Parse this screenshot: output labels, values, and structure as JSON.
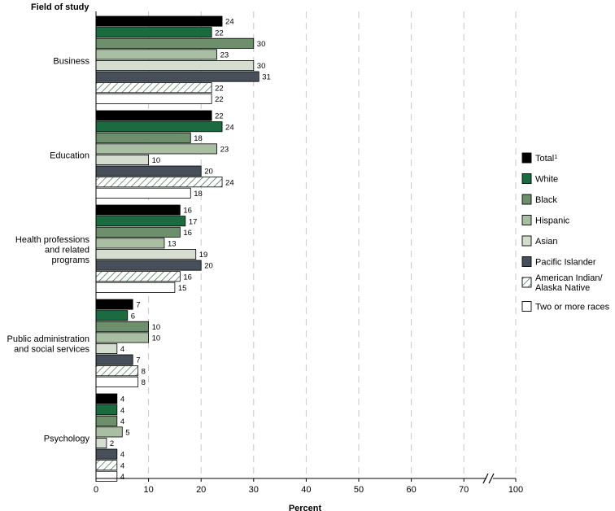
{
  "chart_data": {
    "type": "bar",
    "orientation": "horizontal",
    "title": "",
    "ylabel": "Field of study",
    "xlabel": "Percent",
    "xlim": [
      0,
      100
    ],
    "xticks": [
      "0",
      "10",
      "20",
      "30",
      "40",
      "50",
      "60",
      "70",
      "100"
    ],
    "axis_break": "between 70 and 100",
    "grid": "vertical dashed",
    "legend_position": "right",
    "categories": [
      [
        "Business"
      ],
      [
        "Education"
      ],
      [
        "Health professions",
        "and related",
        "programs"
      ],
      [
        "Public administration",
        "and social services"
      ],
      [
        "Psychology"
      ]
    ],
    "series": [
      {
        "name": "Total",
        "superscript": "1",
        "color": "#000000",
        "pattern": "solid",
        "values": [
          24,
          22,
          16,
          7,
          4
        ]
      },
      {
        "name": "White",
        "color": "#1a6b3f",
        "pattern": "solid",
        "values": [
          22,
          24,
          17,
          6,
          4
        ]
      },
      {
        "name": "Black",
        "color": "#6d8f6c",
        "pattern": "solid",
        "values": [
          30,
          18,
          16,
          10,
          4
        ]
      },
      {
        "name": "Hispanic",
        "color": "#a9bfa4",
        "pattern": "solid",
        "values": [
          23,
          23,
          13,
          10,
          5
        ]
      },
      {
        "name": "Asian",
        "color": "#d5ddd1",
        "pattern": "solid",
        "values": [
          30,
          10,
          19,
          4,
          2
        ]
      },
      {
        "name": "Pacific Islander",
        "color": "#474f5a",
        "pattern": "solid",
        "values": [
          31,
          20,
          20,
          7,
          4
        ]
      },
      {
        "name": "American Indian/ Alaska Native",
        "legend_lines": [
          "American Indian/",
          "Alaska Native"
        ],
        "color": "#ffffff",
        "pattern": "hatch",
        "values": [
          22,
          24,
          16,
          8,
          4
        ]
      },
      {
        "name": "Two or more races",
        "color": "#ffffff",
        "pattern": "solid",
        "values": [
          22,
          18,
          15,
          8,
          4
        ]
      }
    ]
  }
}
